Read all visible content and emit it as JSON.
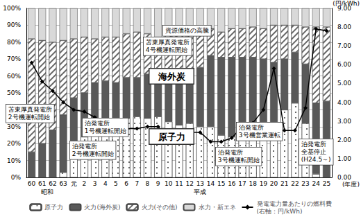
{
  "chart_data": {
    "type": "bar",
    "stacked": true,
    "grid": true,
    "legend": "bottom",
    "categories": [
      "60",
      "61",
      "62",
      "63",
      "元",
      "2",
      "3",
      "4",
      "5",
      "6",
      "7",
      "8",
      "9",
      "10",
      "11",
      "12",
      "13",
      "14",
      "15",
      "16",
      "17",
      "18",
      "19",
      "20",
      "21",
      "22",
      "23",
      "24",
      "25"
    ],
    "xlabel": "(年度)",
    "y2label": "(円/kWh)",
    "x_groups": [
      {
        "label": "昭和",
        "from": "60",
        "to": "63"
      },
      {
        "label": "平成",
        "from": "元",
        "to": "25"
      }
    ],
    "ylim": [
      0,
      100
    ],
    "yticks": [
      {
        "value": 0,
        "label": "0%"
      },
      {
        "value": 10,
        "label": "10%"
      },
      {
        "value": 20,
        "label": "20%"
      },
      {
        "value": 30,
        "label": "30%"
      },
      {
        "value": 40,
        "label": "40%"
      },
      {
        "value": 50,
        "label": "50%"
      },
      {
        "value": 60,
        "label": "60%"
      },
      {
        "value": 70,
        "label": "70%"
      },
      {
        "value": 80,
        "label": "80%"
      },
      {
        "value": 90,
        "label": "90%"
      },
      {
        "value": 100,
        "label": "100%"
      }
    ],
    "y2lim": [
      0,
      9
    ],
    "y2ticks": [
      {
        "value": 0,
        "label": "0.00"
      },
      {
        "value": 1,
        "label": "1.00"
      },
      {
        "value": 2,
        "label": "2.00"
      },
      {
        "value": 3,
        "label": "3.00"
      },
      {
        "value": 4,
        "label": "4.00"
      },
      {
        "value": 5,
        "label": "5.00"
      },
      {
        "value": 6,
        "label": "6.00"
      },
      {
        "value": 7,
        "label": "7.00"
      },
      {
        "value": 8,
        "label": "8.00"
      },
      {
        "value": 9,
        "label": "9.00"
      }
    ],
    "series": [
      {
        "name": "原子力",
        "color": "#ffffff",
        "values": [
          0,
          0,
          0,
          3,
          15,
          24,
          33,
          35,
          34,
          35,
          36,
          35,
          36,
          33,
          31,
          32,
          30,
          30,
          25,
          24,
          28,
          30,
          30,
          30,
          40,
          44,
          32,
          2,
          0
        ]
      },
      {
        "name": "火力(海外炭)",
        "color": "#595959",
        "values": [
          15,
          20,
          28,
          34,
          32,
          26,
          23,
          22,
          22,
          24,
          23,
          26,
          25,
          27,
          32,
          31,
          35,
          42,
          46,
          47,
          43,
          41,
          40,
          38,
          30,
          30,
          35,
          42,
          45
        ]
      },
      {
        "name": "火力(その他)",
        "color": "#ffffff",
        "values": [
          67,
          61,
          52,
          44,
          35,
          33,
          26,
          26,
          27,
          26,
          27,
          24,
          22,
          25,
          23,
          23,
          21,
          16,
          15,
          17,
          17,
          18,
          18,
          22,
          20,
          16,
          22,
          45,
          44
        ]
      },
      {
        "name": "水力・新エネ",
        "color": "#d9d9d9",
        "values": [
          18,
          19,
          20,
          19,
          18,
          17,
          18,
          17,
          17,
          15,
          14,
          15,
          17,
          15,
          14,
          14,
          14,
          12,
          14,
          12,
          12,
          11,
          12,
          10,
          10,
          10,
          11,
          11,
          11
        ]
      },
      {
        "name": "発電電力量あたりの燃料費\n(右軸：円/kWh)",
        "type": "line",
        "axis": "y2",
        "color": "#000000",
        "marker": "diamond",
        "line_style": "solid",
        "values": [
          6.1,
          5.1,
          4.6,
          4.0,
          3.6,
          3.5,
          3.2,
          2.9,
          2.8,
          2.6,
          2.6,
          2.7,
          2.7,
          2.2,
          2.3,
          2.4,
          2.4,
          1.9,
          1.9,
          2.1,
          2.7,
          2.9,
          3.6,
          5.8,
          2.5,
          2.5,
          3.7,
          7.9,
          7.8
        ]
      }
    ],
    "annotations": [
      "資源価格の高騰",
      "苫東厚真発電所\n4号機運転開始",
      "海外炭",
      "原子力",
      "苫東厚真発電所\n2号機運転開始",
      "泊発電所\n1号機運転開始",
      "泊発電所\n2号機運転開始",
      "泊発電所\n3号機運転開始",
      "泊発電所\n3号機営業運転",
      "泊発電所\n全基停止\n(H24.5～)"
    ]
  }
}
